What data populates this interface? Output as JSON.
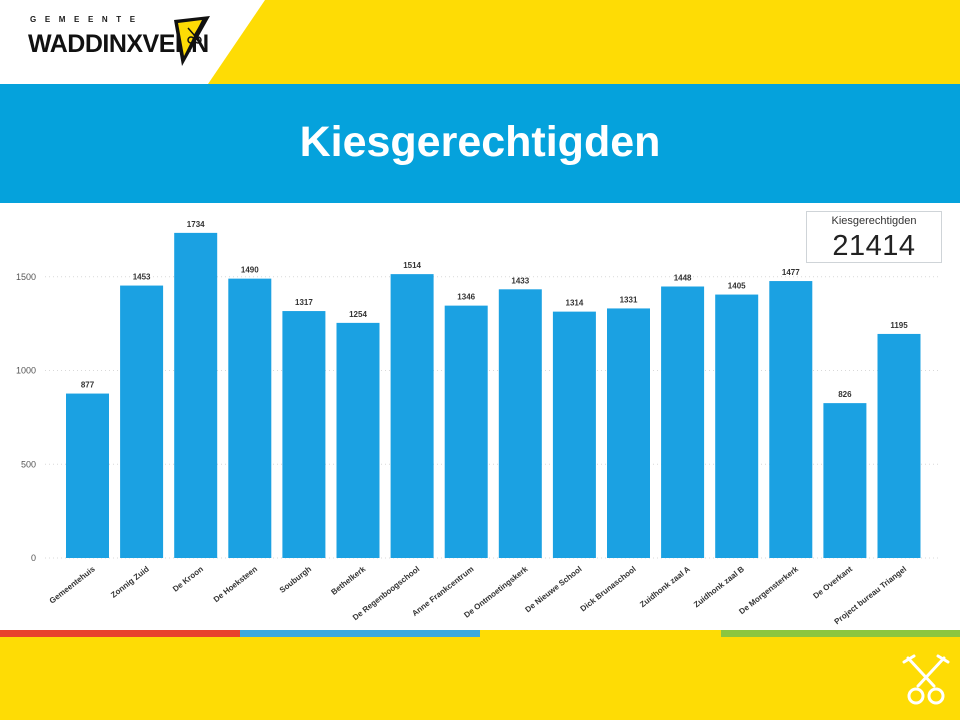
{
  "header": {
    "logo_top_text": "GEMEENTE",
    "logo_name": "WADDINXVEEN",
    "emblem_icon": "crossed-keys-icon"
  },
  "slide": {
    "title": "Kiesgerechtigden"
  },
  "kpi": {
    "label": "Kiesgerechtigden",
    "value": "21414"
  },
  "colors": {
    "yellow": "#FEDC05",
    "blue_band": "#05A2DC",
    "bar": "#1BA1E2",
    "stripe_red": "#E8432D",
    "stripe_blue": "#3EA9DB",
    "stripe_green": "#8CC63F"
  },
  "chart_data": {
    "type": "bar",
    "title": "",
    "xlabel": "",
    "ylabel": "",
    "ylim": [
      0,
      1800
    ],
    "yticks": [
      0,
      500,
      1000,
      1500
    ],
    "grid": true,
    "categories": [
      "Gemeentehuis",
      "Zonnig Zuid",
      "De Kroon",
      "De Hoeksteen",
      "Souburgh",
      "Bethelkerk",
      "De Regenboogschool",
      "Anne Frankcentrum",
      "De Ontmoetingskerk",
      "De Nieuwe School",
      "Dick Brunaschool",
      "Zuidhonk zaal A",
      "Zuidhonk zaal B",
      "De Morgensterkerk",
      "De Overkant",
      "Project bureau Triangel"
    ],
    "values": [
      877,
      1453,
      1734,
      1490,
      1317,
      1254,
      1514,
      1346,
      1433,
      1314,
      1331,
      1448,
      1405,
      1477,
      826,
      1195
    ]
  }
}
